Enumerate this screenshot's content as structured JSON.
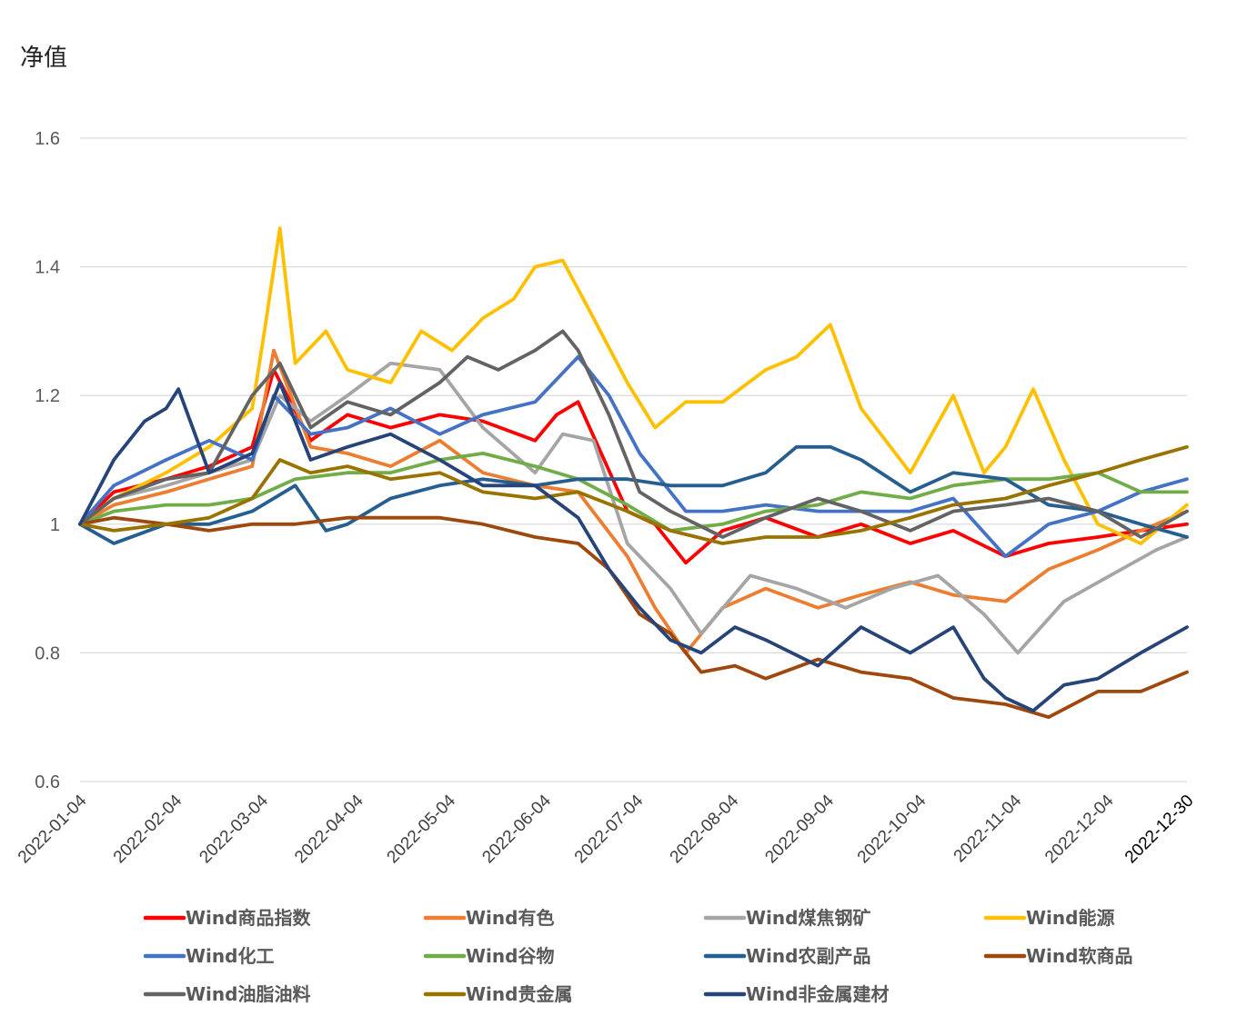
{
  "chart_data": {
    "type": "line",
    "ylabel": "净值",
    "xlabel": "",
    "ylim": [
      0.6,
      1.6
    ],
    "yticks": [
      "0.6",
      "0.8",
      "1",
      "1.2",
      "1.4",
      "1.6"
    ],
    "ytick_values": [
      0.6,
      0.8,
      1.0,
      1.2,
      1.4,
      1.6
    ],
    "xlim": [
      "2022-01-04",
      "2022-12-30"
    ],
    "xticks": [
      "2022-01-04",
      "2022-02-04",
      "2022-03-04",
      "2022-04-04",
      "2022-05-04",
      "2022-06-04",
      "2022-07-04",
      "2022-08-04",
      "2022-09-04",
      "2022-10-04",
      "2022-11-04",
      "2022-12-04",
      "2022-12-30"
    ],
    "grid": "horizontal",
    "legend_position": "bottom",
    "series": [
      {
        "name": "Wind商品指数",
        "color": "#ff0000",
        "x": [
          "2022-01-04",
          "2022-01-15",
          "2022-02-01",
          "2022-02-15",
          "2022-03-01",
          "2022-03-08",
          "2022-03-20",
          "2022-04-01",
          "2022-04-15",
          "2022-05-01",
          "2022-05-15",
          "2022-06-01",
          "2022-06-08",
          "2022-06-15",
          "2022-07-01",
          "2022-07-10",
          "2022-07-20",
          "2022-08-01",
          "2022-08-15",
          "2022-09-01",
          "2022-09-15",
          "2022-10-01",
          "2022-10-15",
          "2022-11-01",
          "2022-11-15",
          "2022-12-01",
          "2022-12-15",
          "2022-12-30"
        ],
        "values": [
          1.0,
          1.05,
          1.07,
          1.09,
          1.12,
          1.24,
          1.13,
          1.17,
          1.15,
          1.17,
          1.16,
          1.13,
          1.17,
          1.19,
          1.02,
          1.0,
          0.94,
          0.99,
          1.01,
          0.98,
          1.0,
          0.97,
          0.99,
          0.95,
          0.97,
          0.98,
          0.99,
          1.0
        ]
      },
      {
        "name": "Wind有色",
        "color": "#ed7d31",
        "x": [
          "2022-01-04",
          "2022-01-15",
          "2022-02-01",
          "2022-02-15",
          "2022-03-01",
          "2022-03-08",
          "2022-03-20",
          "2022-04-01",
          "2022-04-15",
          "2022-05-01",
          "2022-05-15",
          "2022-06-01",
          "2022-06-15",
          "2022-07-01",
          "2022-07-10",
          "2022-07-20",
          "2022-08-01",
          "2022-08-15",
          "2022-09-01",
          "2022-09-15",
          "2022-10-01",
          "2022-10-15",
          "2022-11-01",
          "2022-11-15",
          "2022-12-01",
          "2022-12-15",
          "2022-12-30"
        ],
        "values": [
          1.0,
          1.03,
          1.05,
          1.07,
          1.09,
          1.27,
          1.12,
          1.11,
          1.09,
          1.13,
          1.08,
          1.06,
          1.05,
          0.95,
          0.87,
          0.8,
          0.87,
          0.9,
          0.87,
          0.89,
          0.91,
          0.89,
          0.88,
          0.93,
          0.96,
          0.99,
          1.02
        ]
      },
      {
        "name": "Wind煤焦钢矿",
        "color": "#a5a5a5",
        "x": [
          "2022-01-04",
          "2022-01-15",
          "2022-02-01",
          "2022-02-15",
          "2022-03-01",
          "2022-03-10",
          "2022-03-20",
          "2022-04-01",
          "2022-04-15",
          "2022-05-01",
          "2022-05-15",
          "2022-06-01",
          "2022-06-10",
          "2022-06-20",
          "2022-07-01",
          "2022-07-15",
          "2022-07-25",
          "2022-08-10",
          "2022-08-25",
          "2022-09-10",
          "2022-09-25",
          "2022-10-10",
          "2022-10-25",
          "2022-11-05",
          "2022-11-20",
          "2022-12-05",
          "2022-12-20",
          "2022-12-30"
        ],
        "values": [
          1.0,
          1.04,
          1.06,
          1.08,
          1.1,
          1.2,
          1.16,
          1.2,
          1.25,
          1.24,
          1.15,
          1.08,
          1.14,
          1.13,
          0.97,
          0.9,
          0.83,
          0.92,
          0.9,
          0.87,
          0.9,
          0.92,
          0.86,
          0.8,
          0.88,
          0.92,
          0.96,
          0.98
        ]
      },
      {
        "name": "Wind能源",
        "color": "#ffc000",
        "x": [
          "2022-01-04",
          "2022-01-15",
          "2022-02-01",
          "2022-02-15",
          "2022-03-01",
          "2022-03-05",
          "2022-03-10",
          "2022-03-15",
          "2022-03-25",
          "2022-04-01",
          "2022-04-15",
          "2022-04-25",
          "2022-05-05",
          "2022-05-15",
          "2022-05-25",
          "2022-06-01",
          "2022-06-10",
          "2022-06-20",
          "2022-07-01",
          "2022-07-10",
          "2022-07-20",
          "2022-08-01",
          "2022-08-15",
          "2022-08-25",
          "2022-09-05",
          "2022-09-15",
          "2022-10-01",
          "2022-10-15",
          "2022-10-25",
          "2022-11-01",
          "2022-11-10",
          "2022-11-20",
          "2022-12-01",
          "2022-12-15",
          "2022-12-30"
        ],
        "values": [
          1.0,
          1.04,
          1.08,
          1.12,
          1.18,
          1.3,
          1.46,
          1.25,
          1.3,
          1.24,
          1.22,
          1.3,
          1.27,
          1.32,
          1.35,
          1.4,
          1.41,
          1.32,
          1.22,
          1.15,
          1.19,
          1.19,
          1.24,
          1.26,
          1.31,
          1.18,
          1.08,
          1.2,
          1.08,
          1.12,
          1.21,
          1.1,
          1.0,
          0.97,
          1.03
        ]
      },
      {
        "name": "Wind化工",
        "color": "#4472c4",
        "x": [
          "2022-01-04",
          "2022-01-15",
          "2022-02-01",
          "2022-02-15",
          "2022-03-01",
          "2022-03-08",
          "2022-03-20",
          "2022-04-01",
          "2022-04-15",
          "2022-05-01",
          "2022-05-15",
          "2022-06-01",
          "2022-06-15",
          "2022-06-25",
          "2022-07-05",
          "2022-07-20",
          "2022-08-01",
          "2022-08-15",
          "2022-09-01",
          "2022-09-15",
          "2022-10-01",
          "2022-10-15",
          "2022-11-01",
          "2022-11-15",
          "2022-12-01",
          "2022-12-15",
          "2022-12-30"
        ],
        "values": [
          1.0,
          1.06,
          1.1,
          1.13,
          1.1,
          1.2,
          1.14,
          1.15,
          1.18,
          1.14,
          1.17,
          1.19,
          1.26,
          1.2,
          1.11,
          1.02,
          1.02,
          1.03,
          1.02,
          1.02,
          1.02,
          1.04,
          0.95,
          1.0,
          1.02,
          1.05,
          1.07
        ]
      },
      {
        "name": "Wind谷物",
        "color": "#70ad47",
        "x": [
          "2022-01-04",
          "2022-01-15",
          "2022-02-01",
          "2022-02-15",
          "2022-03-01",
          "2022-03-15",
          "2022-04-01",
          "2022-04-15",
          "2022-05-01",
          "2022-05-15",
          "2022-06-01",
          "2022-06-15",
          "2022-07-01",
          "2022-07-15",
          "2022-08-01",
          "2022-08-15",
          "2022-09-01",
          "2022-09-15",
          "2022-10-01",
          "2022-10-15",
          "2022-11-01",
          "2022-11-15",
          "2022-12-01",
          "2022-12-15",
          "2022-12-30"
        ],
        "values": [
          1.0,
          1.02,
          1.03,
          1.03,
          1.04,
          1.07,
          1.08,
          1.08,
          1.1,
          1.11,
          1.09,
          1.07,
          1.03,
          0.99,
          1.0,
          1.02,
          1.03,
          1.05,
          1.04,
          1.06,
          1.07,
          1.07,
          1.08,
          1.05,
          1.05
        ]
      },
      {
        "name": "Wind农副产品",
        "color": "#255e91",
        "x": [
          "2022-01-04",
          "2022-01-15",
          "2022-02-01",
          "2022-02-15",
          "2022-03-01",
          "2022-03-15",
          "2022-03-25",
          "2022-04-01",
          "2022-04-15",
          "2022-05-01",
          "2022-05-15",
          "2022-06-01",
          "2022-06-15",
          "2022-07-01",
          "2022-07-15",
          "2022-08-01",
          "2022-08-15",
          "2022-08-25",
          "2022-09-05",
          "2022-09-15",
          "2022-10-01",
          "2022-10-15",
          "2022-11-01",
          "2022-11-15",
          "2022-12-01",
          "2022-12-15",
          "2022-12-30"
        ],
        "values": [
          1.0,
          0.97,
          1.0,
          1.0,
          1.02,
          1.06,
          0.99,
          1.0,
          1.04,
          1.06,
          1.07,
          1.06,
          1.07,
          1.07,
          1.06,
          1.06,
          1.08,
          1.12,
          1.12,
          1.1,
          1.05,
          1.08,
          1.07,
          1.03,
          1.02,
          1.0,
          0.98
        ]
      },
      {
        "name": "Wind软商品",
        "color": "#9e480e",
        "x": [
          "2022-01-04",
          "2022-01-15",
          "2022-02-01",
          "2022-02-15",
          "2022-03-01",
          "2022-03-15",
          "2022-04-01",
          "2022-04-15",
          "2022-05-01",
          "2022-05-15",
          "2022-06-01",
          "2022-06-15",
          "2022-06-25",
          "2022-07-05",
          "2022-07-15",
          "2022-07-25",
          "2022-08-05",
          "2022-08-15",
          "2022-09-01",
          "2022-09-15",
          "2022-10-01",
          "2022-10-15",
          "2022-11-01",
          "2022-11-15",
          "2022-12-01",
          "2022-12-15",
          "2022-12-30"
        ],
        "values": [
          1.0,
          1.01,
          1.0,
          0.99,
          1.0,
          1.0,
          1.01,
          1.01,
          1.01,
          1.0,
          0.98,
          0.97,
          0.93,
          0.86,
          0.83,
          0.77,
          0.78,
          0.76,
          0.79,
          0.77,
          0.76,
          0.73,
          0.72,
          0.7,
          0.74,
          0.74,
          0.77
        ]
      },
      {
        "name": "Wind油脂油料",
        "color": "#636363",
        "x": [
          "2022-01-04",
          "2022-01-15",
          "2022-02-01",
          "2022-02-15",
          "2022-03-01",
          "2022-03-10",
          "2022-03-20",
          "2022-04-01",
          "2022-04-15",
          "2022-05-01",
          "2022-05-10",
          "2022-05-20",
          "2022-06-01",
          "2022-06-10",
          "2022-06-15",
          "2022-06-25",
          "2022-07-05",
          "2022-07-15",
          "2022-08-01",
          "2022-08-15",
          "2022-09-01",
          "2022-09-15",
          "2022-10-01",
          "2022-10-15",
          "2022-11-01",
          "2022-11-15",
          "2022-12-01",
          "2022-12-15",
          "2022-12-30"
        ],
        "values": [
          1.0,
          1.04,
          1.07,
          1.08,
          1.2,
          1.25,
          1.15,
          1.19,
          1.17,
          1.22,
          1.26,
          1.24,
          1.27,
          1.3,
          1.27,
          1.17,
          1.05,
          1.02,
          0.98,
          1.01,
          1.04,
          1.02,
          0.99,
          1.02,
          1.03,
          1.04,
          1.02,
          0.98,
          1.02
        ]
      },
      {
        "name": "Wind贵金属",
        "color": "#997300",
        "x": [
          "2022-01-04",
          "2022-01-15",
          "2022-02-01",
          "2022-02-15",
          "2022-03-01",
          "2022-03-10",
          "2022-03-20",
          "2022-04-01",
          "2022-04-15",
          "2022-05-01",
          "2022-05-15",
          "2022-06-01",
          "2022-06-15",
          "2022-07-01",
          "2022-07-15",
          "2022-08-01",
          "2022-08-15",
          "2022-09-01",
          "2022-09-15",
          "2022-10-01",
          "2022-10-15",
          "2022-11-01",
          "2022-11-15",
          "2022-12-01",
          "2022-12-15",
          "2022-12-30"
        ],
        "values": [
          1.0,
          0.99,
          1.0,
          1.01,
          1.04,
          1.1,
          1.08,
          1.09,
          1.07,
          1.08,
          1.05,
          1.04,
          1.05,
          1.02,
          0.99,
          0.97,
          0.98,
          0.98,
          0.99,
          1.01,
          1.03,
          1.04,
          1.06,
          1.08,
          1.1,
          1.12
        ]
      },
      {
        "name": "Wind非金属建材",
        "color": "#264478",
        "x": [
          "2022-01-04",
          "2022-01-15",
          "2022-01-25",
          "2022-02-01",
          "2022-02-05",
          "2022-02-15",
          "2022-03-01",
          "2022-03-10",
          "2022-03-20",
          "2022-04-01",
          "2022-04-15",
          "2022-05-01",
          "2022-05-15",
          "2022-06-01",
          "2022-06-15",
          "2022-06-25",
          "2022-07-05",
          "2022-07-15",
          "2022-07-25",
          "2022-08-05",
          "2022-08-15",
          "2022-09-01",
          "2022-09-15",
          "2022-10-01",
          "2022-10-15",
          "2022-10-25",
          "2022-11-01",
          "2022-11-10",
          "2022-11-20",
          "2022-12-01",
          "2022-12-15",
          "2022-12-30"
        ],
        "values": [
          1.0,
          1.1,
          1.16,
          1.18,
          1.21,
          1.08,
          1.11,
          1.22,
          1.1,
          1.12,
          1.14,
          1.1,
          1.06,
          1.06,
          1.01,
          0.93,
          0.87,
          0.82,
          0.8,
          0.84,
          0.82,
          0.78,
          0.84,
          0.8,
          0.84,
          0.76,
          0.73,
          0.71,
          0.75,
          0.76,
          0.8,
          0.84
        ]
      }
    ]
  }
}
